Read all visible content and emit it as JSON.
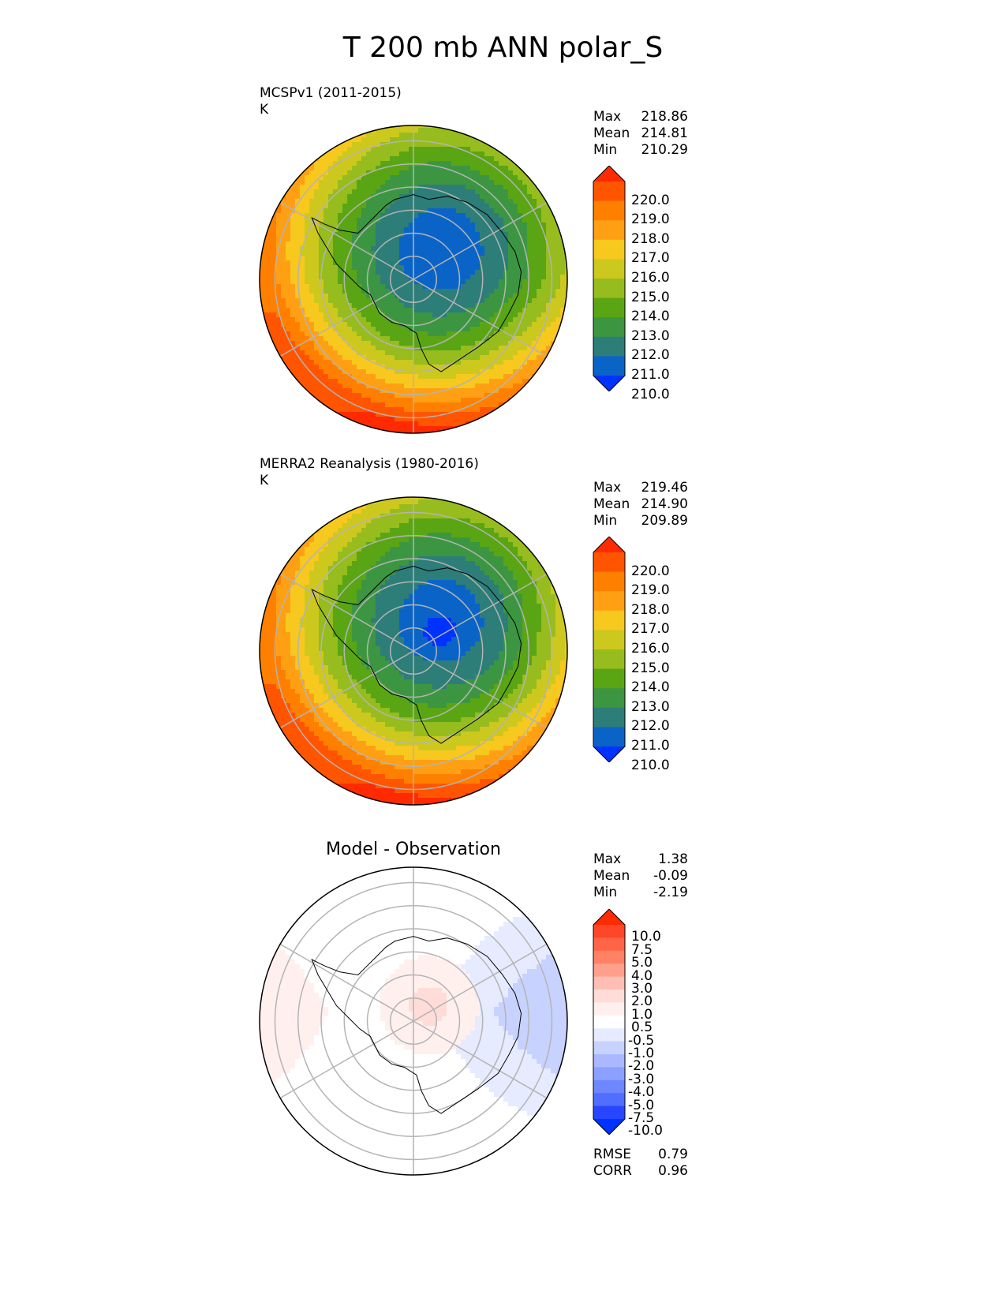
{
  "title": "T 200 mb ANN polar_S",
  "chart_data": [
    {
      "type": "heatmap",
      "projection": "south polar stereographic",
      "title": "MCSPv1 (2011-2015)",
      "units": "K",
      "stats": {
        "Max": "218.86",
        "Mean": "214.81",
        "Min": "210.29"
      },
      "colorbar": {
        "levels": [
          "220.0",
          "219.0",
          "218.0",
          "217.0",
          "216.0",
          "215.0",
          "214.0",
          "213.0",
          "212.0",
          "211.0",
          "210.0"
        ],
        "colors": [
          "#ff2a00",
          "#ff5500",
          "#ff8000",
          "#ffa014",
          "#f7c81e",
          "#cdc81e",
          "#96bc1e",
          "#5aa514",
          "#3c9641",
          "#2d7d78",
          "#0a64c8",
          "#0032ff"
        ],
        "extend": "both"
      },
      "field": {
        "center_min": 210.3,
        "max": 218.9
      }
    },
    {
      "type": "heatmap",
      "projection": "south polar stereographic",
      "title": "MERRA2 Reanalysis (1980-2016)",
      "units": "K",
      "stats": {
        "Max": "219.46",
        "Mean": "214.90",
        "Min": "209.89"
      },
      "colorbar": {
        "levels": [
          "220.0",
          "219.0",
          "218.0",
          "217.0",
          "216.0",
          "215.0",
          "214.0",
          "213.0",
          "212.0",
          "211.0",
          "210.0"
        ],
        "colors": [
          "#ff2a00",
          "#ff5500",
          "#ff8000",
          "#ffa014",
          "#f7c81e",
          "#cdc81e",
          "#96bc1e",
          "#5aa514",
          "#3c9641",
          "#2d7d78",
          "#0a64c8",
          "#0032ff"
        ],
        "extend": "both"
      },
      "field": {
        "center_min": 209.9,
        "max": 219.5
      }
    },
    {
      "type": "heatmap",
      "projection": "south polar stereographic",
      "title": "Model - Observation",
      "stats": {
        "Max": "1.38",
        "Mean": "-0.09",
        "Min": "-2.19"
      },
      "colorbar": {
        "levels": [
          "10.0",
          "7.5",
          "5.0",
          "4.0",
          "3.0",
          "2.0",
          "1.0",
          "0.5",
          "-0.5",
          "-1.0",
          "-2.0",
          "-3.0",
          "-4.0",
          "-5.0",
          "-7.5",
          "-10.0"
        ],
        "colors": [
          "#ff2a00",
          "#ff4628",
          "#ff6446",
          "#ff8264",
          "#ffa08c",
          "#ffbeb4",
          "#ffdcd7",
          "#fff0ee",
          "#ffffff",
          "#e6ebff",
          "#c8d2ff",
          "#aab9ff",
          "#8ca0ff",
          "#6e87ff",
          "#506eff",
          "#2846ff",
          "#0032ff"
        ],
        "extend": "both"
      },
      "metrics": {
        "RMSE": "0.79",
        "CORR": "0.96"
      }
    }
  ]
}
